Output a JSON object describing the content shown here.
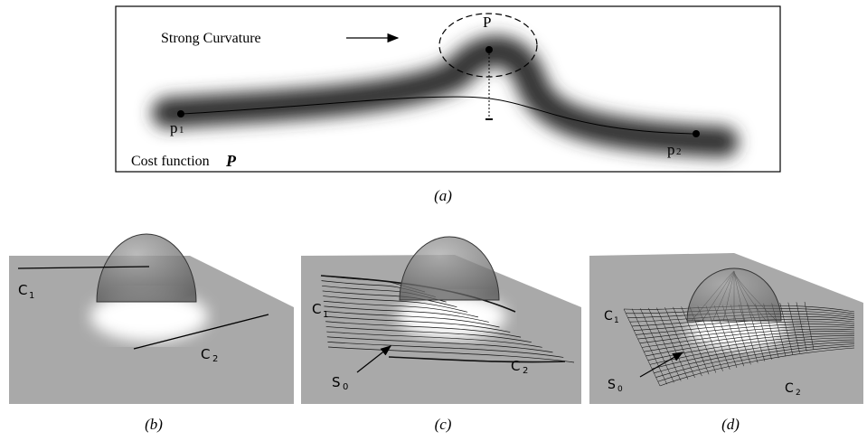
{
  "panels": {
    "a": {
      "annotation": "Strong Curvature",
      "peak_label": "P",
      "p1": {
        "base": "p",
        "sub": "1"
      },
      "p2": {
        "base": "p",
        "sub": "2"
      },
      "cost_label": "Cost function",
      "cost_symbol": "P",
      "caption": "(a)"
    },
    "b": {
      "c1": {
        "base": "C",
        "sub": "1"
      },
      "c2": {
        "base": "C",
        "sub": "2"
      },
      "caption": "(b)"
    },
    "c": {
      "c1": {
        "base": "C",
        "sub": "1"
      },
      "c2": {
        "base": "C",
        "sub": "2"
      },
      "s0": {
        "base": "S",
        "sub": "0"
      },
      "caption": "(c)"
    },
    "d": {
      "c1": {
        "base": "C",
        "sub": "1"
      },
      "c2": {
        "base": "C",
        "sub": "2"
      },
      "s0": {
        "base": "S",
        "sub": "0"
      },
      "caption": "(d)"
    }
  }
}
